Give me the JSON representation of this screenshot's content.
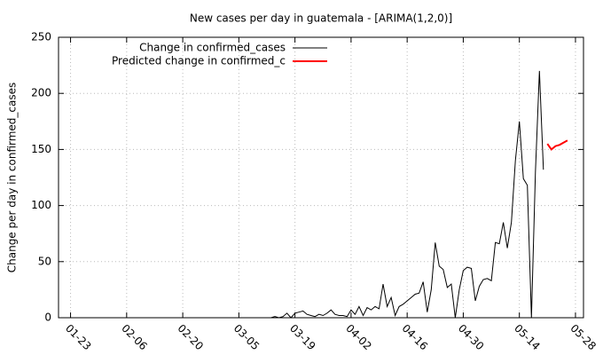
{
  "chart_data": {
    "type": "line",
    "title": "New cases per day in guatemala -  [ARIMA(1,2,0)]",
    "y_label": "Change per day in confirmed_cases",
    "xlim": [
      "01-20",
      "05-30"
    ],
    "xticks": [
      "01-23",
      "02-06",
      "02-20",
      "03-05",
      "03-19",
      "04-02",
      "04-16",
      "04-30",
      "05-14",
      "05-28"
    ],
    "ylim": [
      0,
      250
    ],
    "yticks": [
      0,
      50,
      100,
      150,
      200,
      250
    ],
    "grid": true,
    "legend": "top-left",
    "series": [
      {
        "name": "Change in confirmed_cases",
        "color": "#000000",
        "x": [
          "03-13",
          "03-14",
          "03-15",
          "03-16",
          "03-17",
          "03-18",
          "03-19",
          "03-20",
          "03-21",
          "03-22",
          "03-23",
          "03-24",
          "03-25",
          "03-26",
          "03-27",
          "03-28",
          "03-29",
          "03-30",
          "03-31",
          "04-01",
          "04-02",
          "04-03",
          "04-04",
          "04-05",
          "04-06",
          "04-07",
          "04-08",
          "04-09",
          "04-10",
          "04-11",
          "04-12",
          "04-13",
          "04-14",
          "04-15",
          "04-16",
          "04-17",
          "04-18",
          "04-19",
          "04-20",
          "04-21",
          "04-22",
          "04-23",
          "04-24",
          "04-25",
          "04-26",
          "04-27",
          "04-28",
          "04-29",
          "04-30",
          "05-01",
          "05-02",
          "05-03",
          "05-04",
          "05-05",
          "05-06",
          "05-07",
          "05-08",
          "05-09",
          "05-10",
          "05-11",
          "05-12",
          "05-13",
          "05-14",
          "05-15",
          "05-16",
          "05-17",
          "05-18",
          "05-19",
          "05-20"
        ],
        "values": [
          0,
          1,
          0,
          1,
          4,
          0,
          4,
          5,
          6,
          3,
          2,
          1,
          3,
          2,
          4,
          7,
          3,
          2,
          2,
          1,
          7,
          3,
          10,
          2,
          9,
          7,
          10,
          8,
          30,
          10,
          18,
          2,
          10,
          12,
          15,
          18,
          21,
          22,
          32,
          5,
          25,
          67,
          46,
          43,
          27,
          30,
          0,
          25,
          42,
          45,
          44,
          15,
          28,
          34,
          35,
          33,
          67,
          66,
          85,
          62,
          85,
          140,
          175,
          124,
          118,
          0,
          130,
          220,
          132
        ]
      },
      {
        "name": "Predicted change in confirmed_c",
        "color": "#ff0000",
        "x": [
          "05-21",
          "05-22",
          "05-23",
          "05-24",
          "05-25",
          "05-26"
        ],
        "values": [
          155,
          150,
          153,
          154,
          156,
          158
        ]
      }
    ]
  }
}
